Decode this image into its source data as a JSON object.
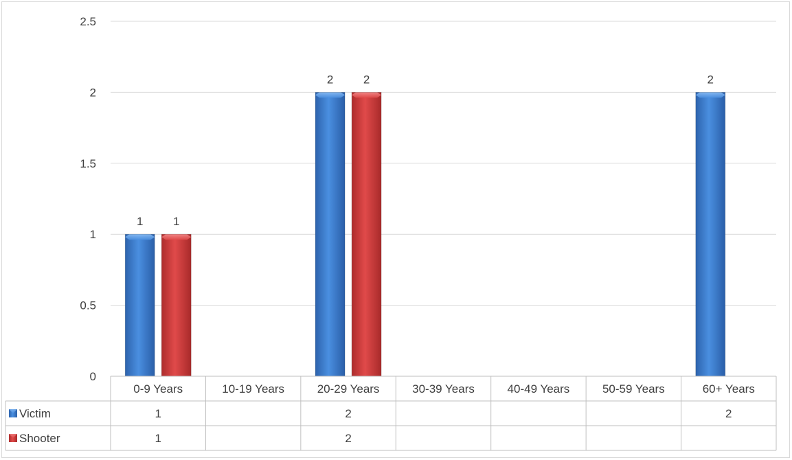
{
  "chart_data": {
    "type": "bar",
    "title": "",
    "xlabel": "",
    "ylabel": "",
    "categories": [
      "0-9 Years",
      "10-19 Years",
      "20-29 Years",
      "30-39 Years",
      "40-49 Years",
      "50-59 Years",
      "60+ Years"
    ],
    "series": [
      {
        "name": "Victim",
        "values": [
          1,
          null,
          2,
          null,
          null,
          null,
          2
        ],
        "color": "#3a7fd5"
      },
      {
        "name": "Shooter",
        "values": [
          1,
          null,
          2,
          null,
          null,
          null,
          null
        ],
        "color": "#d63a3a"
      }
    ],
    "ylim": [
      0,
      2.5
    ],
    "yticks": [
      0,
      0.5,
      1,
      1.5,
      2,
      2.5
    ],
    "ytick_labels": [
      "0",
      "0.5",
      "1",
      "1.5",
      "2",
      "2.5"
    ],
    "grid": true,
    "data_labels": true,
    "legend": "data-table",
    "data_table": true
  }
}
